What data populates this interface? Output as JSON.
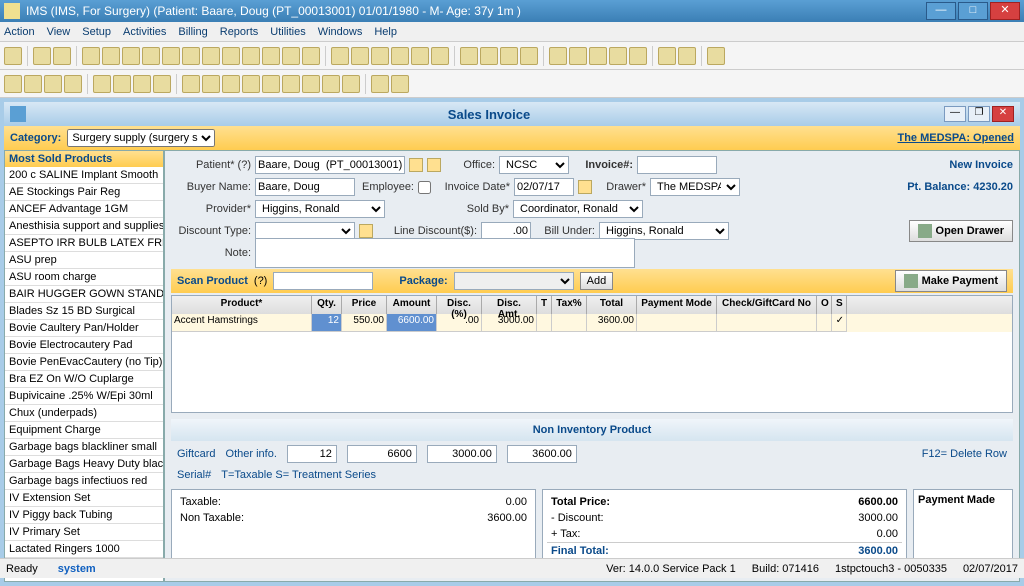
{
  "title": "IMS (IMS, For Surgery)    (Patient: Baare, Doug  (PT_00013001) 01/01/1980 - M- Age: 37y 1m )",
  "menu": [
    "Action",
    "View",
    "Setup",
    "Activities",
    "Billing",
    "Reports",
    "Utilities",
    "Windows",
    "Help"
  ],
  "inner_title": "Sales Invoice",
  "category_label": "Category:",
  "category_value": "Surgery supply (surgery s",
  "medspa": "The MEDSPA:  Opened",
  "left_header": "Most Sold Products",
  "products": [
    "200 c SALINE Implant Smooth",
    "AE Stockings Pair Reg",
    "ANCEF Advantage 1GM",
    "Anesthisia support and supplies",
    "ASEPTO IRR BULB LATEX FREE",
    "ASU prep",
    "ASU room charge",
    "BAIR HUGGER GOWN STANDARD",
    "Blades Sz 15 BD Surgical",
    "Bovie Caultery Pan/Holder",
    "Bovie Electrocautery Pad",
    "Bovie PenEvacCautery (no Tip)",
    "Bra EZ On W/O Cuplarge",
    "Bupivicaine .25% W/Epi 30ml",
    "Chux (underpads)",
    "Equipment Charge",
    "Garbage bags blackliner small",
    "Garbage Bags Heavy Duty black",
    "Garbage bags infectiuos red",
    "IV Extension Set",
    "IV Piggy back Tubing",
    "IV Primary Set",
    "Lactated Ringers 1000"
  ],
  "left_footer": "Click to select Product.",
  "form": {
    "patient_lbl": "Patient* (?)",
    "patient": "Baare, Doug  (PT_00013001)",
    "office_lbl": "Office:",
    "office": "NCSC",
    "invoice_lbl": "Invoice#:",
    "invoice": "",
    "newinv": "New Invoice",
    "buyer_lbl": "Buyer Name:",
    "buyer": "Baare, Doug",
    "emp_lbl": "Employee:",
    "invdate_lbl": "Invoice Date*",
    "invdate": "02/07/17",
    "drawer_lbl": "Drawer*",
    "drawer": "The MEDSPA",
    "balance": "Pt. Balance:  4230.20",
    "provider_lbl": "Provider*",
    "provider": "Higgins, Ronald",
    "soldby_lbl": "Sold By*",
    "soldby": "Coordinator, Ronald",
    "disctype_lbl": "Discount Type:",
    "linedisc_lbl": "Line Discount($):",
    "linedisc": ".00",
    "billunder_lbl": "Bill Under:",
    "billunder": "Higgins, Ronald",
    "note_lbl": "Note:",
    "opendrawer": "Open Drawer"
  },
  "scan": {
    "label": "Scan Product",
    "pkg_lbl": "Package:",
    "add": "Add",
    "makepay": "Make Payment"
  },
  "cols": [
    "Product*",
    "Qty.",
    "Price",
    "Amount",
    "Disc.(%)",
    "Disc. Amt.",
    "T",
    "Tax%",
    "Total",
    "Payment Mode",
    "Check/GiftCard No",
    "O",
    "S"
  ],
  "row": {
    "product": "Accent Hamstrings",
    "qty": "12",
    "price": "550.00",
    "amount": "6600.00",
    "discp": ".00",
    "discamt": "3000.00",
    "tax": "",
    "total": "3600.00"
  },
  "noninv": "Non Inventory Product",
  "links": {
    "giftcard": "Giftcard",
    "other": "Other info.",
    "serial": "Serial#",
    "legend": "T=Taxable    S= Treatment Series",
    "f12": "F12= Delete Row"
  },
  "sum": {
    "qty": "12",
    "amount": "6600",
    "disc": "3000.00",
    "total": "3600.00"
  },
  "totals": {
    "taxable_lbl": "Taxable:",
    "taxable": "0.00",
    "nontax_lbl": "Non Taxable:",
    "nontax": "3600.00",
    "tp_lbl": "Total Price:",
    "tp": "6600.00",
    "disc_lbl": "- Discount:",
    "disc": "3000.00",
    "tax_lbl": "+ Tax:",
    "tax": "0.00",
    "final_lbl": "Final Total:",
    "final": "3600.00",
    "payment_made": "Payment Made"
  },
  "status": {
    "ready": "Ready",
    "system": "system",
    "ver": "Ver: 14.0.0 Service Pack 1",
    "build": "Build: 071416",
    "term": "1stpctouch3 - 0050335",
    "date": "02/07/2017"
  }
}
